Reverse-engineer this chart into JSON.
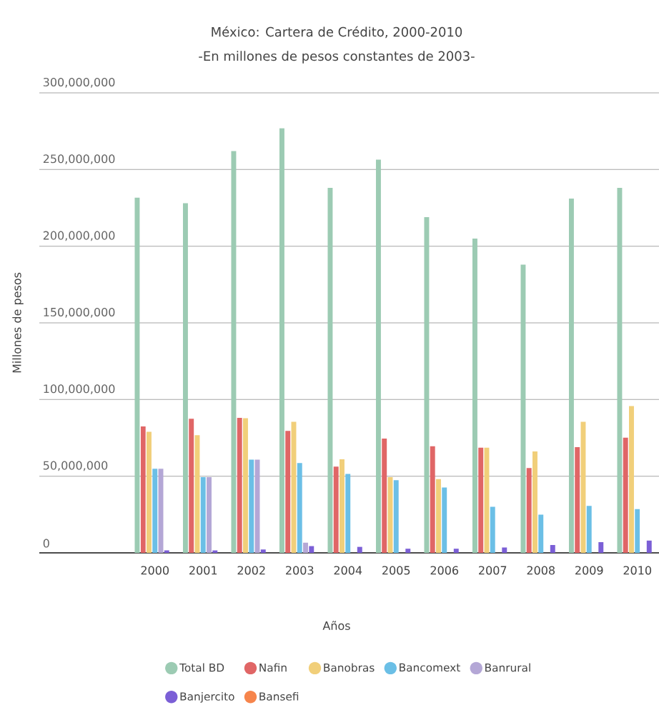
{
  "chart_data": {
    "type": "bar",
    "title": "México: Cartera de Crédito, 2000-2010",
    "subtitle": "-En millones de pesos constantes de 2003-",
    "xlabel": "Años",
    "ylabel": "Millones de pesos",
    "categories": [
      "2000",
      "2001",
      "2002",
      "2003",
      "2004",
      "2005",
      "2006",
      "2007",
      "2008",
      "2009",
      "2010"
    ],
    "series": [
      {
        "name": "Total BD",
        "color": "#9ccbb3",
        "values": [
          231600000,
          228000000,
          262000000,
          277000000,
          238000000,
          256500000,
          219000000,
          205000000,
          188000000,
          231000000,
          238000000
        ]
      },
      {
        "name": "Nafin",
        "color": "#e06666",
        "values": [
          82400000,
          87500000,
          88000000,
          79500000,
          56200000,
          74500000,
          69500000,
          68600000,
          55300000,
          68900000,
          75100000
        ]
      },
      {
        "name": "Banobras",
        "color": "#f1cf7a",
        "values": [
          79000000,
          76800000,
          87800000,
          85500000,
          61000000,
          49400000,
          48100000,
          68600000,
          66100000,
          85500000,
          95700000
        ]
      },
      {
        "name": "Bancomext",
        "color": "#6bbfe6",
        "values": [
          54800000,
          49400000,
          60800000,
          58600000,
          51500000,
          47400000,
          42600000,
          30100000,
          24900000,
          30600000,
          28500000
        ]
      },
      {
        "name": "Banrural",
        "color": "#b4a7d6",
        "values": [
          54800000,
          49400000,
          60800000,
          6600000,
          0,
          0,
          0,
          0,
          0,
          0,
          0
        ]
      },
      {
        "name": "Banjercito",
        "color": "#7b5fd6",
        "values": [
          1600000,
          1600000,
          2200000,
          4400000,
          3900000,
          2700000,
          2700000,
          3500000,
          5100000,
          7000000,
          8000000
        ]
      },
      {
        "name": "Bansefi",
        "color": "#f6854c",
        "values": [
          0,
          0,
          0,
          0,
          0,
          0,
          0,
          0,
          0,
          0,
          0
        ]
      }
    ],
    "ylim": [
      0,
      300000000
    ],
    "yticks": [
      0,
      {
        "value": 50000000,
        "label": "50,000,000"
      },
      {
        "value": 100000000,
        "label": "100,000,000"
      },
      {
        "value": 150000000,
        "label": "150,000,000"
      },
      {
        "value": 200000000,
        "label": "200,000,000"
      },
      {
        "value": 250000000,
        "label": "250,000,000"
      },
      {
        "value": 300000000,
        "label": "300,000,000"
      }
    ],
    "grid": "y",
    "legend": "bottom"
  }
}
